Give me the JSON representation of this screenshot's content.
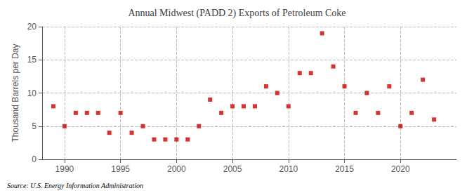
{
  "chart_data": {
    "type": "scatter",
    "title": "Annual Midwest (PADD 2) Exports of Petroleum Coke",
    "ylabel": "Thousand Barrels per Day",
    "annotation": "Source: U.S. Energy Information Administration",
    "x": [
      1989,
      1990,
      1991,
      1992,
      1993,
      1994,
      1995,
      1996,
      1997,
      1998,
      1999,
      2000,
      2001,
      2002,
      2003,
      2004,
      2005,
      2006,
      2007,
      2008,
      2009,
      2010,
      2011,
      2012,
      2013,
      2014,
      2015,
      2016,
      2017,
      2018,
      2019,
      2020,
      2021,
      2022,
      2023
    ],
    "values": [
      8.0,
      5.0,
      7.0,
      7.0,
      7.0,
      4.0,
      7.0,
      4.0,
      5.0,
      3.0,
      3.0,
      3.0,
      3.0,
      5.0,
      9.0,
      7.0,
      8.0,
      8.0,
      8.0,
      11.0,
      10.0,
      8.0,
      13.0,
      13.0,
      19.0,
      14.0,
      11.0,
      7.0,
      10.0,
      7.0,
      11.0,
      5.0,
      7.0,
      12.0,
      6.0
    ],
    "color": "#cc0000",
    "marker": "square",
    "xlim": [
      1988,
      2025
    ],
    "xticks": [
      1990,
      1995,
      2000,
      2005,
      2010,
      2015,
      2020
    ],
    "ylim": [
      0,
      20
    ],
    "yticks": [
      0,
      5,
      10,
      15,
      20
    ],
    "grid": true
  }
}
